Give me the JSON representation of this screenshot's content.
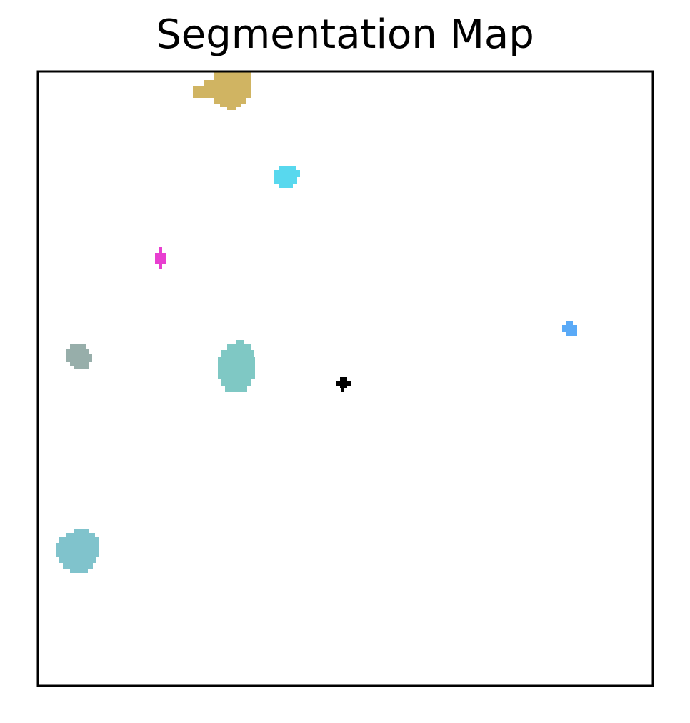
{
  "title": "Segmentation Map",
  "chart_data": {
    "type": "heatmap",
    "title": "Segmentation Map",
    "xlabel": "",
    "ylabel": "",
    "grid": false,
    "axes_ticks": false,
    "background_color": "#ffffff",
    "regions": [
      {
        "color": "#d0b462",
        "shape": [
          [
            19,
            0,
            26,
            0
          ],
          [
            19,
            2,
            24,
            4
          ],
          [
            19,
            4,
            23,
            5
          ],
          [
            20,
            2,
            23,
            3
          ],
          [
            20,
            6,
            24,
            8
          ]
        ]
      },
      {
        "color": "#58d8ee"
      },
      {
        "color": "#e83fd0"
      },
      {
        "color": "#97aeaa"
      },
      {
        "color": "#7fc8c4"
      },
      {
        "color": "#000000"
      },
      {
        "color": "#5aaaf7"
      },
      {
        "color": "#80c3cc"
      }
    ]
  }
}
